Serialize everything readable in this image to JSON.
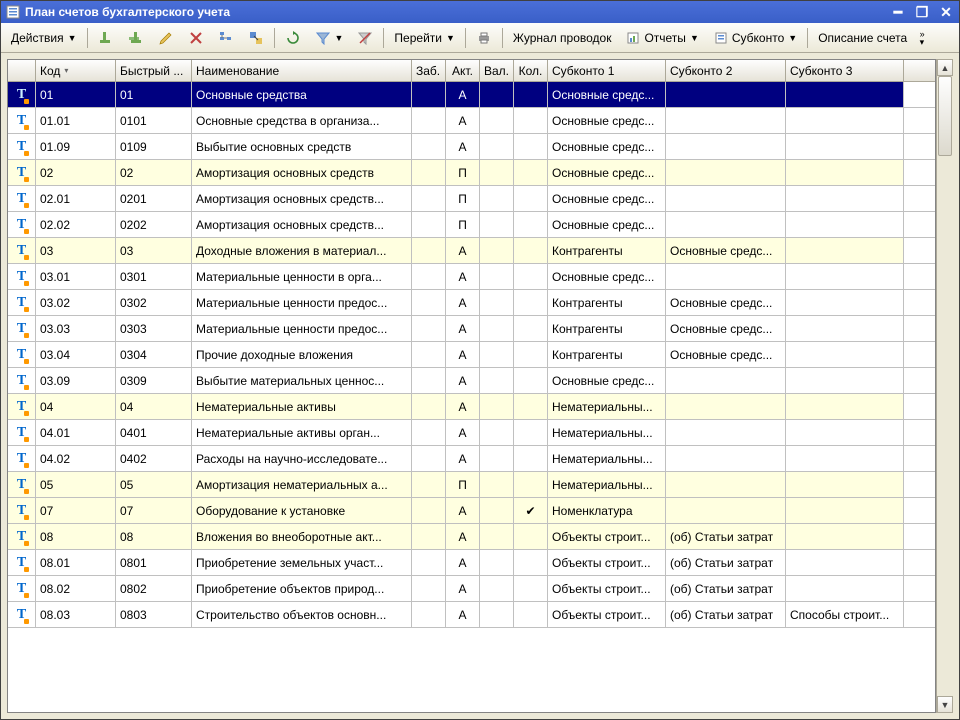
{
  "window": {
    "title": "План счетов бухгалтерского учета"
  },
  "toolbar": {
    "actions": "Действия",
    "goto": "Перейти",
    "journal": "Журнал проводок",
    "reports": "Отчеты",
    "subkonto": "Субконто",
    "desc": "Описание счета"
  },
  "columns": {
    "c0": "",
    "c1": "Код",
    "c2": "Быстрый ...",
    "c3": "Наименование",
    "c4": "Заб.",
    "c5": "Акт.",
    "c6": "Вал.",
    "c7": "Кол.",
    "c8": "Субконто 1",
    "c9": "Субконто 2",
    "c10": "Субконто 3"
  },
  "rows": [
    {
      "sel": true,
      "parent": true,
      "code": "01",
      "fast": "01",
      "name": "Основные средства",
      "zab": "",
      "akt": "А",
      "val": "",
      "kol": "",
      "s1": "Основные средс...",
      "s2": "",
      "s3": ""
    },
    {
      "code": "01.01",
      "fast": "0101",
      "name": "Основные средства в организа...",
      "akt": "А",
      "s1": "Основные средс...",
      "s2": "",
      "s3": ""
    },
    {
      "code": "01.09",
      "fast": "0109",
      "name": "Выбытие основных средств",
      "akt": "А",
      "s1": "Основные средс...",
      "s2": "",
      "s3": ""
    },
    {
      "parent": true,
      "code": "02",
      "fast": "02",
      "name": "Амортизация основных средств",
      "akt": "П",
      "s1": "Основные средс...",
      "s2": "",
      "s3": ""
    },
    {
      "code": "02.01",
      "fast": "0201",
      "name": "Амортизация основных средств...",
      "akt": "П",
      "s1": "Основные средс...",
      "s2": "",
      "s3": ""
    },
    {
      "code": "02.02",
      "fast": "0202",
      "name": "Амортизация основных средств...",
      "akt": "П",
      "s1": "Основные средс...",
      "s2": "",
      "s3": ""
    },
    {
      "parent": true,
      "code": "03",
      "fast": "03",
      "name": "Доходные вложения в материал...",
      "akt": "А",
      "s1": "Контрагенты",
      "s2": "Основные средс...",
      "s3": ""
    },
    {
      "code": "03.01",
      "fast": "0301",
      "name": "Материальные ценности в орга...",
      "akt": "А",
      "s1": "Основные средс...",
      "s2": "",
      "s3": ""
    },
    {
      "code": "03.02",
      "fast": "0302",
      "name": "Материальные ценности предос...",
      "akt": "А",
      "s1": "Контрагенты",
      "s2": "Основные средс...",
      "s3": ""
    },
    {
      "code": "03.03",
      "fast": "0303",
      "name": "Материальные ценности предос...",
      "akt": "А",
      "s1": "Контрагенты",
      "s2": "Основные средс...",
      "s3": ""
    },
    {
      "code": "03.04",
      "fast": "0304",
      "name": "Прочие доходные вложения",
      "akt": "А",
      "s1": "Контрагенты",
      "s2": "Основные средс...",
      "s3": ""
    },
    {
      "code": "03.09",
      "fast": "0309",
      "name": "Выбытие материальных ценнос...",
      "akt": "А",
      "s1": "Основные средс...",
      "s2": "",
      "s3": ""
    },
    {
      "parent": true,
      "code": "04",
      "fast": "04",
      "name": "Нематериальные активы",
      "akt": "А",
      "s1": "Нематериальны...",
      "s2": "",
      "s3": ""
    },
    {
      "code": "04.01",
      "fast": "0401",
      "name": "Нематериальные активы орган...",
      "akt": "А",
      "s1": "Нематериальны...",
      "s2": "",
      "s3": ""
    },
    {
      "code": "04.02",
      "fast": "0402",
      "name": "Расходы на научно-исследовате...",
      "akt": "А",
      "s1": "Нематериальны...",
      "s2": "",
      "s3": ""
    },
    {
      "parent": true,
      "code": "05",
      "fast": "05",
      "name": "Амортизация нематериальных а...",
      "akt": "П",
      "s1": "Нематериальны...",
      "s2": "",
      "s3": ""
    },
    {
      "parent": true,
      "code": "07",
      "fast": "07",
      "name": "Оборудование к установке",
      "akt": "А",
      "kol": "✔",
      "s1": "Номенклатура",
      "s2": "",
      "s3": ""
    },
    {
      "parent": true,
      "code": "08",
      "fast": "08",
      "name": "Вложения во внеоборотные акт...",
      "akt": "А",
      "s1": "Объекты строит...",
      "s2": "(об) Статьи затрат",
      "s3": ""
    },
    {
      "code": "08.01",
      "fast": "0801",
      "name": "Приобретение земельных участ...",
      "akt": "А",
      "s1": "Объекты строит...",
      "s2": "(об) Статьи затрат",
      "s3": ""
    },
    {
      "code": "08.02",
      "fast": "0802",
      "name": "Приобретение объектов природ...",
      "akt": "А",
      "s1": "Объекты строит...",
      "s2": "(об) Статьи затрат",
      "s3": ""
    },
    {
      "code": "08.03",
      "fast": "0803",
      "name": "Строительство объектов основн...",
      "akt": "А",
      "s1": "Объекты строит...",
      "s2": "(об) Статьи затрат",
      "s3": "Способы строит..."
    }
  ],
  "colors": {
    "titlebar_start": "#4a6fd8",
    "titlebar_end": "#3a5fc8",
    "toolbar_bg": "#ece9d8",
    "selected_bg": "#000080",
    "parent_bg": "#ffffe0",
    "icon_T": "#0066cc",
    "icon_dot": "#ff9900"
  }
}
